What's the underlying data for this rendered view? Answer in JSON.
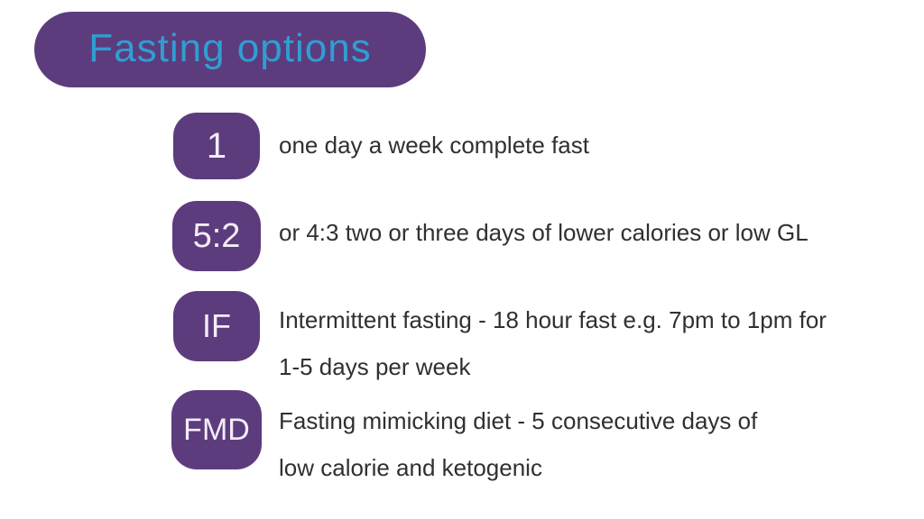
{
  "colors": {
    "page_bg": "#ffffff",
    "purple": "#5d3c7e",
    "title_blue": "#2f9ed3",
    "badge_text": "#f3edf8",
    "body_text": "#312f31"
  },
  "header": {
    "title": "Fasting options"
  },
  "rows": [
    {
      "badge": "1",
      "lines": [
        "one day a week complete fast"
      ]
    },
    {
      "badge": "5:2",
      "lines": [
        "or 4:3 two or three days of lower calories or low GL"
      ]
    },
    {
      "badge": "IF",
      "lines": [
        "Intermittent fasting - 18 hour fast e.g. 7pm to 1pm for",
        "1-5 days per week"
      ]
    },
    {
      "badge": "FMD",
      "lines": [
        "Fasting mimicking diet - 5 consecutive days of",
        "low calorie and ketogenic"
      ]
    }
  ]
}
